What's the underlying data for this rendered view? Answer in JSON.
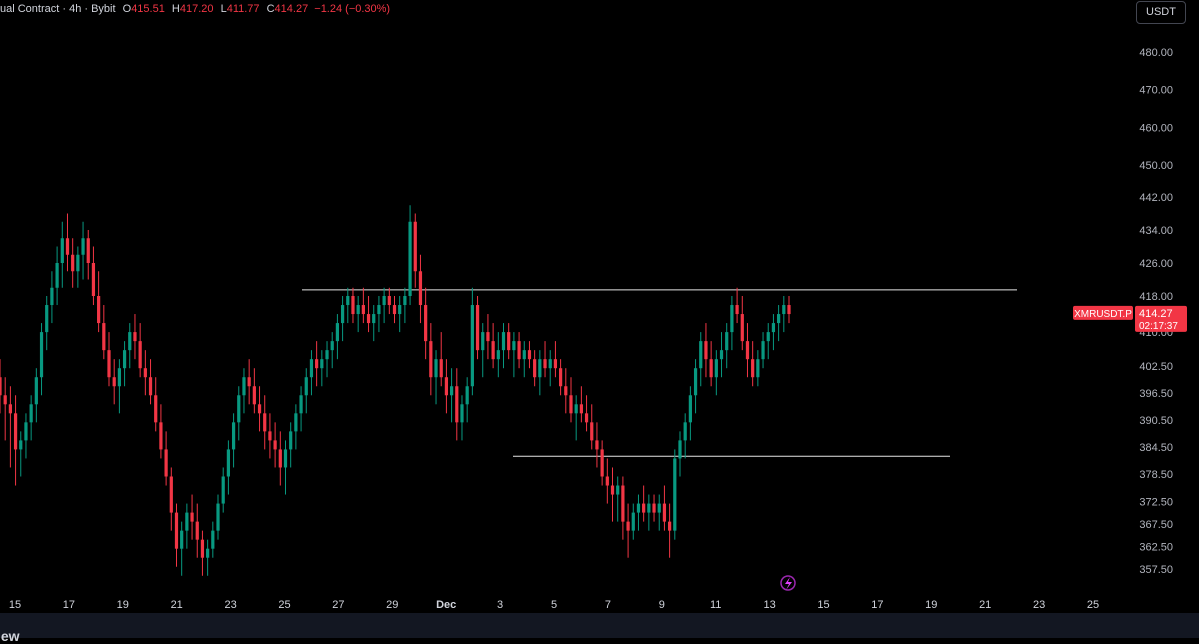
{
  "header": {
    "title": "ual Contract · 4h · Bybit",
    "open_label": "O",
    "open": "415.51",
    "high_label": "H",
    "high": "417.20",
    "low_label": "L",
    "low": "411.77",
    "close_label": "C",
    "close": "414.27",
    "change": "−1.24 (−0.30%)"
  },
  "currency_button": "USDT",
  "price_tag": {
    "symbol": "XMRUSDT.P",
    "price": "414.27",
    "countdown": "02:17:37",
    "color": "#f23645"
  },
  "colors": {
    "up": "#089981",
    "down": "#f23645",
    "background": "#000000"
  },
  "footer": {
    "brand_fragment": "iew"
  },
  "chart_data": {
    "type": "candlestick",
    "interval": "4h",
    "y_axis": {
      "position": "right",
      "ticks": [
        "480.00",
        "470.00",
        "460.00",
        "450.00",
        "442.00",
        "434.00",
        "426.00",
        "418.00",
        "410.00",
        "402.50",
        "396.50",
        "390.50",
        "384.50",
        "378.50",
        "372.50",
        "367.50",
        "362.50",
        "357.50"
      ]
    },
    "x_axis": {
      "ticks": [
        "15",
        "17",
        "19",
        "21",
        "23",
        "25",
        "27",
        "29",
        "Dec",
        "3",
        "5",
        "7",
        "9",
        "11",
        "13",
        "15",
        "17",
        "19",
        "21",
        "23",
        "25"
      ]
    },
    "horizontal_lines": [
      419.5,
      382.5
    ],
    "last_price": 414.27,
    "candles": [
      [
        400,
        404,
        392,
        396
      ],
      [
        396,
        400,
        386,
        394
      ],
      [
        394,
        398,
        380,
        392
      ],
      [
        392,
        396,
        376,
        384
      ],
      [
        384,
        388,
        378,
        386
      ],
      [
        386,
        392,
        382,
        390
      ],
      [
        390,
        396,
        386,
        394
      ],
      [
        394,
        402,
        390,
        400
      ],
      [
        400,
        412,
        396,
        410
      ],
      [
        410,
        418,
        406,
        416
      ],
      [
        416,
        424,
        412,
        420
      ],
      [
        420,
        430,
        416,
        426
      ],
      [
        426,
        436,
        420,
        432
      ],
      [
        432,
        438,
        424,
        428
      ],
      [
        428,
        432,
        420,
        424
      ],
      [
        424,
        430,
        420,
        428
      ],
      [
        428,
        436,
        422,
        432
      ],
      [
        432,
        434,
        422,
        426
      ],
      [
        426,
        430,
        416,
        418
      ],
      [
        418,
        424,
        410,
        412
      ],
      [
        412,
        416,
        404,
        406
      ],
      [
        406,
        410,
        398,
        400
      ],
      [
        400,
        404,
        394,
        398
      ],
      [
        398,
        404,
        392,
        402
      ],
      [
        402,
        408,
        398,
        406
      ],
      [
        406,
        412,
        402,
        410
      ],
      [
        410,
        414,
        404,
        408
      ],
      [
        408,
        412,
        400,
        402
      ],
      [
        402,
        406,
        396,
        400
      ],
      [
        400,
        404,
        394,
        396
      ],
      [
        396,
        400,
        388,
        390
      ],
      [
        390,
        394,
        382,
        384
      ],
      [
        384,
        388,
        376,
        378
      ],
      [
        378,
        380,
        366,
        370
      ],
      [
        370,
        372,
        358,
        362
      ],
      [
        362,
        368,
        356,
        366
      ],
      [
        366,
        372,
        362,
        370
      ],
      [
        370,
        374,
        364,
        368
      ],
      [
        368,
        372,
        360,
        364
      ],
      [
        364,
        366,
        356,
        360
      ],
      [
        360,
        364,
        356,
        362
      ],
      [
        362,
        368,
        360,
        366
      ],
      [
        366,
        374,
        364,
        372
      ],
      [
        372,
        380,
        370,
        378
      ],
      [
        378,
        386,
        374,
        384
      ],
      [
        384,
        392,
        380,
        390
      ],
      [
        390,
        398,
        386,
        396
      ],
      [
        396,
        402,
        392,
        400
      ],
      [
        400,
        404,
        394,
        398
      ],
      [
        398,
        402,
        392,
        394
      ],
      [
        394,
        398,
        388,
        392
      ],
      [
        392,
        396,
        384,
        388
      ],
      [
        388,
        392,
        382,
        386
      ],
      [
        386,
        390,
        380,
        384
      ],
      [
        384,
        388,
        376,
        380
      ],
      [
        380,
        386,
        374,
        384
      ],
      [
        384,
        390,
        380,
        388
      ],
      [
        388,
        394,
        384,
        392
      ],
      [
        392,
        398,
        388,
        396
      ],
      [
        396,
        402,
        392,
        400
      ],
      [
        400,
        406,
        396,
        404
      ],
      [
        404,
        408,
        398,
        402
      ],
      [
        402,
        406,
        398,
        404
      ],
      [
        404,
        408,
        400,
        406
      ],
      [
        406,
        410,
        402,
        408
      ],
      [
        408,
        414,
        404,
        412
      ],
      [
        412,
        418,
        408,
        416
      ],
      [
        416,
        420,
        412,
        418
      ],
      [
        418,
        420,
        412,
        414
      ],
      [
        414,
        418,
        410,
        416
      ],
      [
        416,
        420,
        412,
        414
      ],
      [
        414,
        418,
        410,
        412
      ],
      [
        412,
        416,
        408,
        414
      ],
      [
        414,
        418,
        410,
        416
      ],
      [
        416,
        420,
        412,
        418
      ],
      [
        418,
        420,
        414,
        416
      ],
      [
        416,
        418,
        412,
        414
      ],
      [
        414,
        418,
        410,
        416
      ],
      [
        416,
        420,
        412,
        418
      ],
      [
        418,
        440,
        416,
        436
      ],
      [
        436,
        438,
        420,
        424
      ],
      [
        424,
        428,
        412,
        416
      ],
      [
        416,
        420,
        404,
        408
      ],
      [
        408,
        412,
        396,
        400
      ],
      [
        400,
        406,
        394,
        404
      ],
      [
        404,
        410,
        398,
        400
      ],
      [
        400,
        404,
        392,
        396
      ],
      [
        396,
        402,
        390,
        398
      ],
      [
        398,
        402,
        386,
        390
      ],
      [
        390,
        396,
        386,
        394
      ],
      [
        394,
        400,
        390,
        398
      ],
      [
        398,
        420,
        396,
        416
      ],
      [
        416,
        418,
        404,
        406
      ],
      [
        406,
        412,
        400,
        410
      ],
      [
        410,
        414,
        404,
        408
      ],
      [
        408,
        412,
        402,
        404
      ],
      [
        404,
        410,
        400,
        406
      ],
      [
        406,
        412,
        402,
        410
      ],
      [
        410,
        412,
        404,
        406
      ],
      [
        406,
        410,
        400,
        408
      ],
      [
        408,
        410,
        402,
        404
      ],
      [
        404,
        408,
        400,
        406
      ],
      [
        406,
        408,
        402,
        404
      ],
      [
        404,
        406,
        398,
        400
      ],
      [
        400,
        406,
        396,
        404
      ],
      [
        404,
        408,
        400,
        402
      ],
      [
        402,
        406,
        398,
        404
      ],
      [
        404,
        408,
        400,
        402
      ],
      [
        402,
        404,
        396,
        398
      ],
      [
        398,
        402,
        392,
        396
      ],
      [
        396,
        400,
        390,
        392
      ],
      [
        392,
        396,
        386,
        394
      ],
      [
        394,
        398,
        390,
        392
      ],
      [
        392,
        396,
        388,
        390
      ],
      [
        390,
        394,
        384,
        386
      ],
      [
        386,
        390,
        380,
        384
      ],
      [
        384,
        386,
        376,
        378
      ],
      [
        378,
        382,
        372,
        376
      ],
      [
        376,
        380,
        368,
        374
      ],
      [
        374,
        378,
        368,
        376
      ],
      [
        376,
        378,
        364,
        368
      ],
      [
        368,
        372,
        360,
        366
      ],
      [
        366,
        372,
        364,
        370
      ],
      [
        370,
        374,
        366,
        372
      ],
      [
        372,
        376,
        368,
        370
      ],
      [
        370,
        374,
        366,
        372
      ],
      [
        372,
        374,
        368,
        370
      ],
      [
        370,
        374,
        366,
        372
      ],
      [
        372,
        376,
        366,
        368
      ],
      [
        368,
        372,
        360,
        366
      ],
      [
        366,
        384,
        364,
        382
      ],
      [
        382,
        388,
        378,
        386
      ],
      [
        386,
        392,
        382,
        390
      ],
      [
        390,
        398,
        386,
        396
      ],
      [
        396,
        404,
        392,
        402
      ],
      [
        402,
        410,
        398,
        408
      ],
      [
        408,
        412,
        400,
        404
      ],
      [
        404,
        408,
        398,
        400
      ],
      [
        400,
        406,
        396,
        404
      ],
      [
        404,
        410,
        400,
        406
      ],
      [
        406,
        412,
        402,
        410
      ],
      [
        410,
        418,
        406,
        416
      ],
      [
        416,
        420,
        412,
        414
      ],
      [
        414,
        418,
        406,
        408
      ],
      [
        408,
        412,
        400,
        404
      ],
      [
        404,
        408,
        398,
        400
      ],
      [
        400,
        406,
        398,
        404
      ],
      [
        404,
        410,
        402,
        408
      ],
      [
        408,
        412,
        404,
        410
      ],
      [
        410,
        414,
        406,
        412
      ],
      [
        412,
        416,
        408,
        414
      ],
      [
        414,
        418,
        410,
        416
      ],
      [
        416,
        418,
        412,
        414
      ]
    ]
  }
}
